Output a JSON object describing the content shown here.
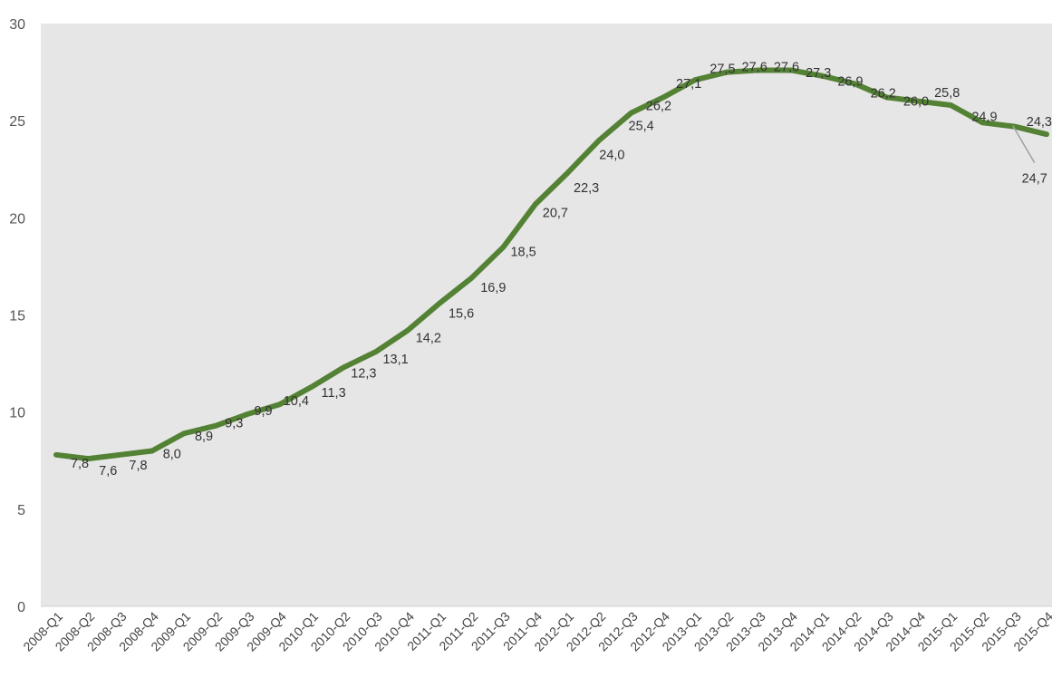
{
  "chart_data": {
    "type": "line",
    "title": "",
    "xlabel": "",
    "ylabel": "",
    "ylim": [
      0,
      30
    ],
    "yticks": [
      "0",
      "5",
      "10",
      "15",
      "20",
      "25",
      "30"
    ],
    "grid": false,
    "legend": "none",
    "colors": {
      "line": "#548235",
      "plot_background": "#e6e6e6",
      "leader": "#a0a0a0"
    },
    "categories": [
      "2008-Q1",
      "2008-Q2",
      "2008-Q3",
      "2008-Q4",
      "2009-Q1",
      "2009-Q2",
      "2009-Q3",
      "2009-Q4",
      "2010-Q1",
      "2010-Q2",
      "2010-Q3",
      "2010-Q4",
      "2011-Q1",
      "2011-Q2",
      "2011-Q3",
      "2011-Q4",
      "2012-Q1",
      "2012-Q2",
      "2012-Q3",
      "2012-Q4",
      "2013-Q1",
      "2013-Q2",
      "2013-Q3",
      "2013-Q4",
      "2014-Q1",
      "2014-Q2",
      "2014-Q3",
      "2014-Q4",
      "2015-Q1",
      "2015-Q2",
      "2015-Q3",
      "2015-Q4"
    ],
    "series": [
      {
        "values": [
          7.8,
          7.6,
          7.8,
          8.0,
          8.9,
          9.3,
          9.9,
          10.4,
          11.3,
          12.3,
          13.1,
          14.2,
          15.6,
          16.9,
          18.5,
          20.7,
          22.3,
          24.0,
          25.4,
          26.2,
          27.1,
          27.5,
          27.6,
          27.6,
          27.3,
          26.9,
          26.2,
          26.0,
          25.8,
          24.9,
          24.7,
          24.3
        ],
        "labels": [
          "7,8",
          "7,6",
          "7,8",
          "8,0",
          "8,9",
          "9,3",
          "9,9",
          "10,4",
          "11,3",
          "12,3",
          "13,1",
          "14,2",
          "15,6",
          "16,9",
          "18,5",
          "20,7",
          "22,3",
          "24,0",
          "25,4",
          "26,2",
          "27,1",
          "27,5",
          "27,6",
          "27,6",
          "27,3",
          "26,9",
          "26,2",
          "26,0",
          "25,8",
          "24,9",
          "24,7",
          "24,3"
        ]
      }
    ]
  }
}
